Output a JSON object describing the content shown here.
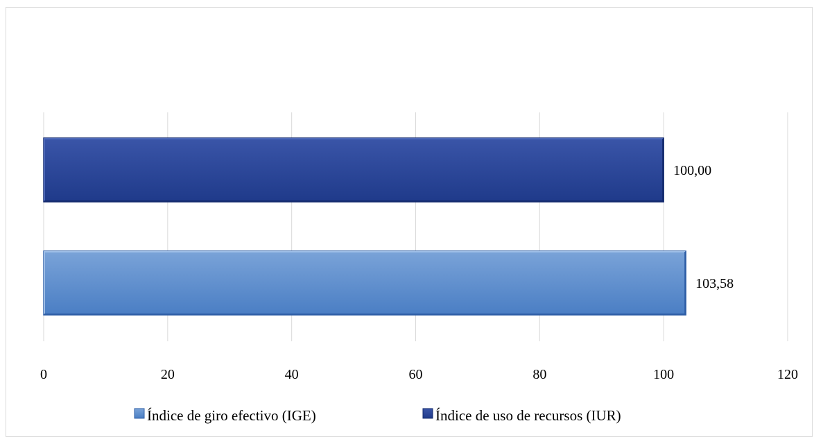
{
  "chart_data": {
    "type": "bar",
    "orientation": "horizontal",
    "title": "",
    "xlabel": "",
    "ylabel": "",
    "xlim": [
      0,
      120
    ],
    "xticks": [
      0,
      20,
      40,
      60,
      80,
      100,
      120
    ],
    "xtick_labels": [
      "0",
      "20",
      "40",
      "60",
      "80",
      "100",
      "120"
    ],
    "grid": "vertical",
    "legend_position": "bottom",
    "series": [
      {
        "name": "Índice de giro efectivo (IGE)",
        "value": 103.58,
        "label": "103,58",
        "color": "#4a7ec4"
      },
      {
        "name": "Índice de uso de recursos (IUR)",
        "value": 100.0,
        "label": "100,00",
        "color": "#1f3a8a"
      }
    ]
  }
}
